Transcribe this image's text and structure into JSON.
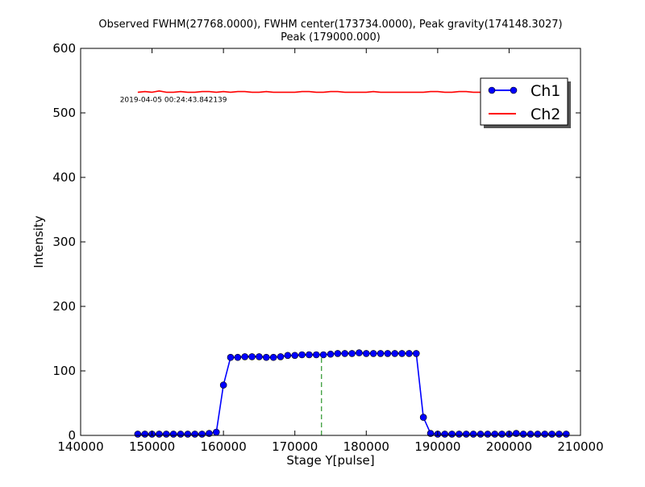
{
  "chart_data": {
    "type": "line",
    "title": "Observed FWHM(27768.0000), FWHM center(173734.0000), Peak gravity(174148.3027)",
    "subtitle": "Peak (179000.000)",
    "xlabel": "Stage Y[pulse]",
    "ylabel": "Intensity",
    "xlim": [
      140000,
      210000
    ],
    "ylim": [
      0,
      600
    ],
    "xticks": [
      140000,
      150000,
      160000,
      170000,
      180000,
      190000,
      200000,
      210000
    ],
    "yticks": [
      0,
      100,
      200,
      300,
      400,
      500,
      600
    ],
    "grid": false,
    "legend_position": "top-right",
    "annotation": "2019-04-05 00:24:43.842139",
    "fwhm_center_line": {
      "x": 173734,
      "y_range": [
        0,
        125
      ],
      "color": "#008000",
      "style": "dashed"
    },
    "series": [
      {
        "name": "Ch1",
        "color": "#0000ff",
        "marker": "circle",
        "x": [
          148000,
          149000,
          150000,
          151000,
          152000,
          153000,
          154000,
          155000,
          156000,
          157000,
          158000,
          159000,
          160000,
          161000,
          162000,
          163000,
          164000,
          165000,
          166000,
          167000,
          168000,
          169000,
          170000,
          171000,
          172000,
          173000,
          174000,
          175000,
          176000,
          177000,
          178000,
          179000,
          180000,
          181000,
          182000,
          183000,
          184000,
          185000,
          186000,
          187000,
          188000,
          189000,
          190000,
          191000,
          192000,
          193000,
          194000,
          195000,
          196000,
          197000,
          198000,
          199000,
          200000,
          201000,
          202000,
          203000,
          204000,
          205000,
          206000,
          207000,
          208000
        ],
        "values": [
          2,
          2,
          2,
          2,
          2,
          2,
          2,
          2,
          2,
          2,
          3,
          5,
          78,
          121,
          121,
          122,
          122,
          122,
          121,
          121,
          122,
          124,
          124,
          125,
          125,
          125,
          125,
          126,
          127,
          127,
          127,
          128,
          127,
          127,
          127,
          127,
          127,
          127,
          127,
          127,
          28,
          3,
          2,
          2,
          2,
          2,
          2,
          2,
          2,
          2,
          2,
          2,
          2,
          3,
          2,
          2,
          2,
          2,
          2,
          2,
          2
        ]
      },
      {
        "name": "Ch2",
        "color": "#ff0000",
        "marker": "none",
        "x": [
          148000,
          149000,
          150000,
          151000,
          152000,
          153000,
          154000,
          155000,
          156000,
          157000,
          158000,
          159000,
          160000,
          161000,
          162000,
          163000,
          164000,
          165000,
          166000,
          167000,
          168000,
          169000,
          170000,
          171000,
          172000,
          173000,
          174000,
          175000,
          176000,
          177000,
          178000,
          179000,
          180000,
          181000,
          182000,
          183000,
          184000,
          185000,
          186000,
          187000,
          188000,
          189000,
          190000,
          191000,
          192000,
          193000,
          194000,
          195000,
          196000,
          197000,
          198000,
          199000,
          200000,
          201000,
          202000,
          203000,
          204000,
          205000,
          206000,
          207000,
          208000
        ],
        "values": [
          532,
          533,
          532,
          534,
          532,
          532,
          533,
          532,
          532,
          533,
          533,
          532,
          533,
          532,
          533,
          533,
          532,
          532,
          533,
          532,
          532,
          532,
          532,
          533,
          533,
          532,
          532,
          533,
          533,
          532,
          532,
          532,
          532,
          533,
          532,
          532,
          532,
          532,
          532,
          532,
          532,
          533,
          533,
          532,
          532,
          533,
          533,
          532,
          532,
          532,
          532,
          532,
          532,
          532,
          532,
          532,
          532,
          532,
          532,
          532,
          532
        ]
      }
    ]
  }
}
